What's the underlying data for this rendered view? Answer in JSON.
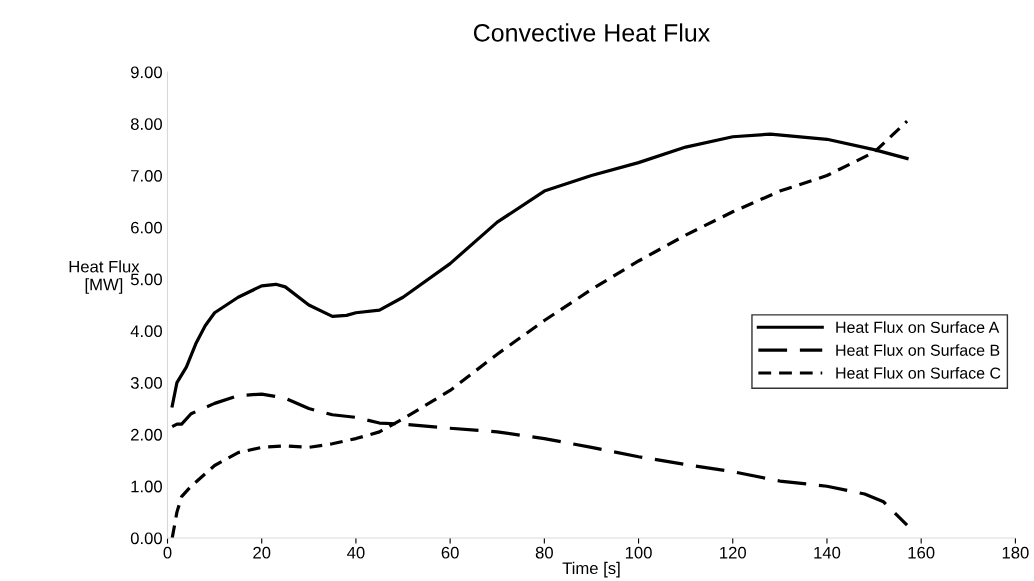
{
  "chart_data": {
    "type": "line",
    "title": "Convective Heat Flux",
    "xlabel": "Time [s]",
    "ylabel": "Heat Flux\n[MW]",
    "xlim": [
      0,
      180
    ],
    "xticks": [
      0,
      20,
      40,
      60,
      80,
      100,
      120,
      140,
      160,
      180
    ],
    "ylim": [
      0,
      9
    ],
    "yticks": [
      {
        "value": 0,
        "label": "0.00"
      },
      {
        "value": 1,
        "label": "1.00"
      },
      {
        "value": 2,
        "label": "2.00"
      },
      {
        "value": 3,
        "label": "3.00"
      },
      {
        "value": 4,
        "label": "4.00"
      },
      {
        "value": 5,
        "label": "5.00"
      },
      {
        "value": 6,
        "label": "6.00"
      },
      {
        "value": 7,
        "label": "7.00"
      },
      {
        "value": 8,
        "label": "8.00"
      },
      {
        "value": 9,
        "label": "9.00"
      }
    ],
    "grid": false,
    "legend": "right",
    "marker": "none",
    "series": [
      {
        "name": "Heat Flux on Surface A",
        "color": "#000000",
        "line_style": "solid",
        "x": [
          1,
          2,
          4,
          6,
          8,
          10,
          15,
          20,
          23,
          25,
          30,
          35,
          38,
          40,
          45,
          50,
          60,
          70,
          80,
          90,
          100,
          110,
          120,
          128,
          140,
          150,
          157
        ],
        "values": [
          2.55,
          3.0,
          3.3,
          3.75,
          4.1,
          4.35,
          4.65,
          4.87,
          4.9,
          4.85,
          4.5,
          4.28,
          4.3,
          4.35,
          4.4,
          4.65,
          5.3,
          6.1,
          6.7,
          7.0,
          7.25,
          7.55,
          7.75,
          7.8,
          7.7,
          7.5,
          7.33
        ]
      },
      {
        "name": "Heat Flux on Surface B",
        "color": "#000000",
        "line_style": "longdash",
        "x": [
          1,
          2,
          3,
          5,
          10,
          15,
          20,
          25,
          30,
          35,
          40,
          45,
          50,
          60,
          70,
          80,
          90,
          100,
          110,
          120,
          130,
          140,
          148,
          152,
          157
        ],
        "values": [
          2.15,
          2.2,
          2.2,
          2.4,
          2.6,
          2.75,
          2.78,
          2.7,
          2.5,
          2.38,
          2.33,
          2.22,
          2.2,
          2.12,
          2.05,
          1.92,
          1.75,
          1.57,
          1.42,
          1.28,
          1.1,
          1.0,
          0.85,
          0.7,
          0.25
        ]
      },
      {
        "name": "Heat Flux on Surface C",
        "color": "#000000",
        "line_style": "dashed",
        "x": [
          1,
          2,
          3,
          5,
          10,
          15,
          20,
          25,
          30,
          35,
          40,
          45,
          50,
          60,
          70,
          80,
          90,
          100,
          110,
          120,
          130,
          140,
          150,
          157
        ],
        "values": [
          0.0,
          0.5,
          0.8,
          1.0,
          1.4,
          1.65,
          1.75,
          1.78,
          1.75,
          1.82,
          1.92,
          2.05,
          2.3,
          2.85,
          3.55,
          4.2,
          4.8,
          5.35,
          5.85,
          6.3,
          6.7,
          7.0,
          7.45,
          8.05
        ]
      }
    ]
  }
}
